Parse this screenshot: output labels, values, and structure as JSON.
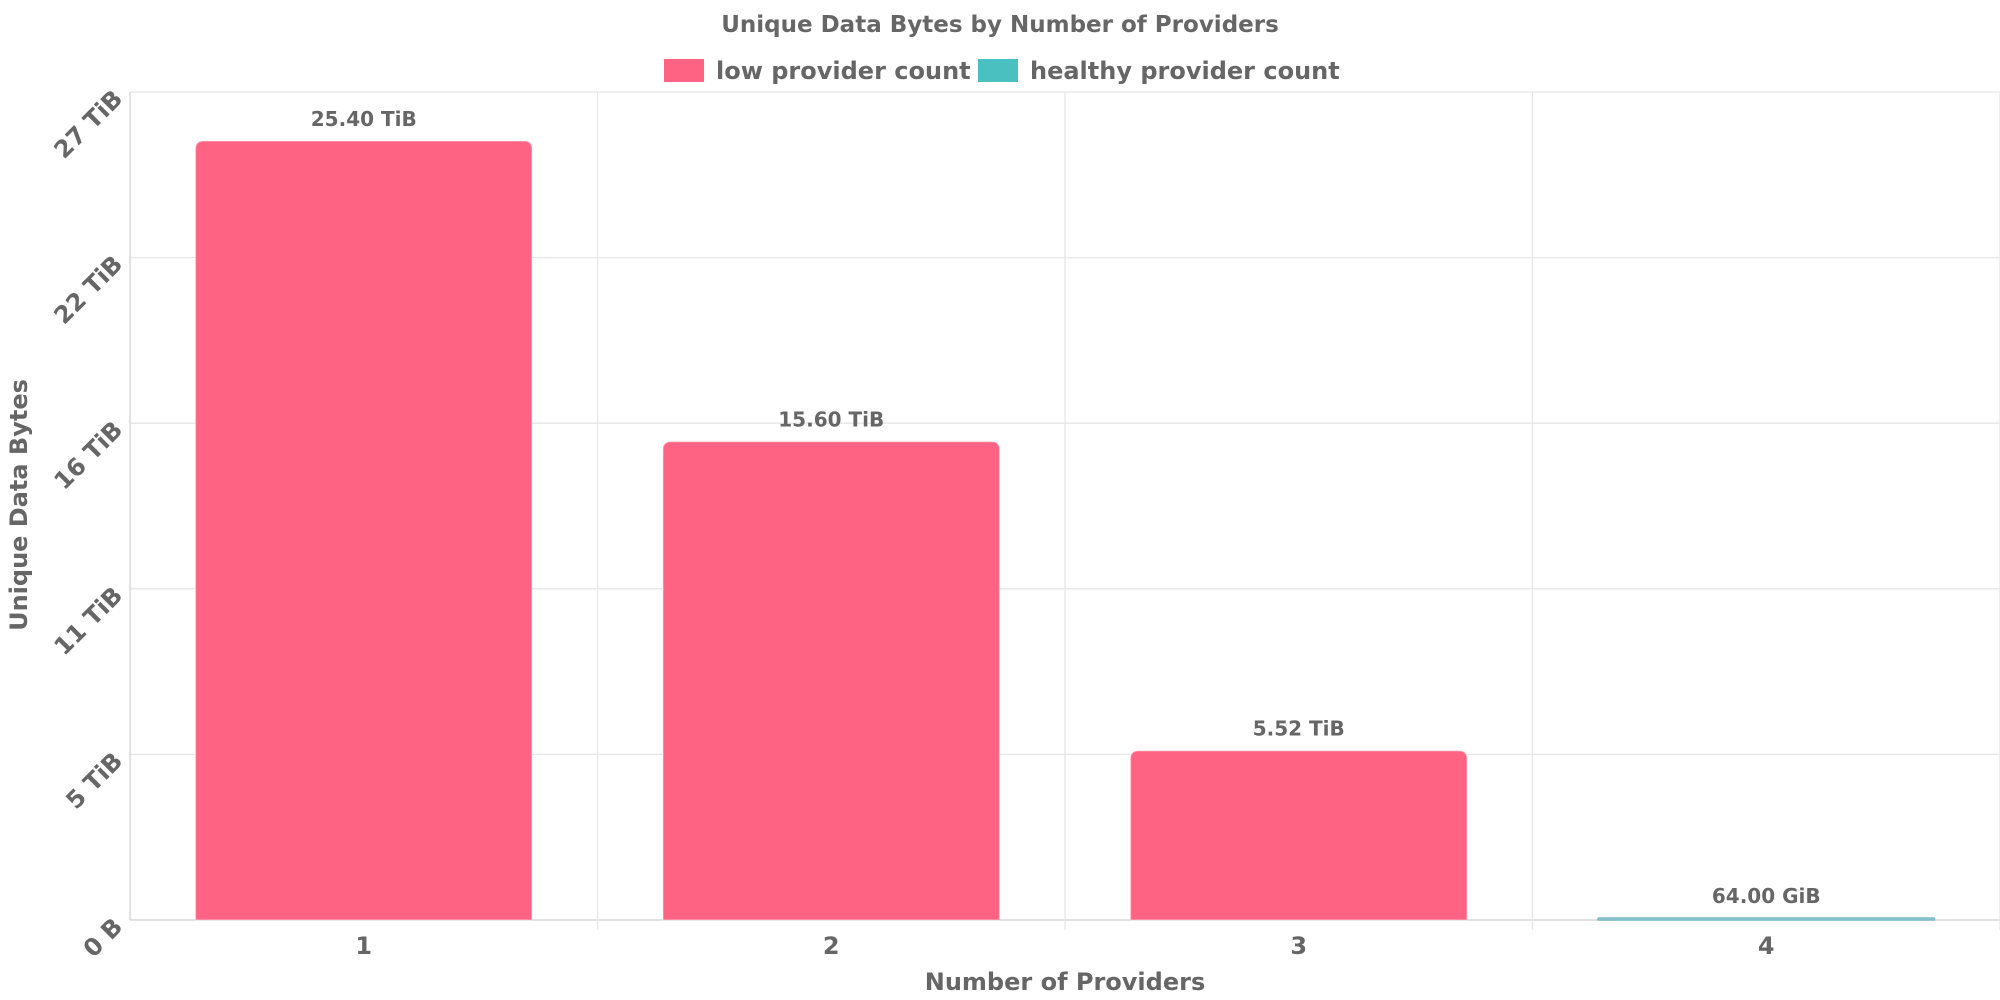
{
  "chart_data": {
    "type": "bar",
    "title": "Unique Data Bytes by Number of Providers",
    "xlabel": "Number of Providers",
    "ylabel": "Unique Data Bytes",
    "categories": [
      "1",
      "2",
      "3",
      "4"
    ],
    "values_bytes": [
      27927874435481,
      17152385589248,
      6069345632829,
      68719476736
    ],
    "data_labels": [
      "25.40 TiB",
      "15.60 TiB",
      "5.52 TiB",
      "64.00 GiB"
    ],
    "bar_colors": [
      "#ff6384",
      "#ff6384",
      "#ff6384",
      "#4bc0c0"
    ],
    "y_ticks_bytes": [
      0,
      5937362561433,
      11874725122867,
      17812087684300,
      23749450245734,
      29686812807168
    ],
    "y_tick_labels": [
      "0 B",
      "5 TiB",
      "11 TiB",
      "16 TiB",
      "22 TiB",
      "27 TiB"
    ],
    "ylim": [
      0,
      29686812807168
    ],
    "grid": true,
    "legend_position": "top-center",
    "legend": [
      {
        "name": "low provider count",
        "color": "#ff6384"
      },
      {
        "name": "healthy provider count",
        "color": "#4bc0c0"
      }
    ]
  }
}
